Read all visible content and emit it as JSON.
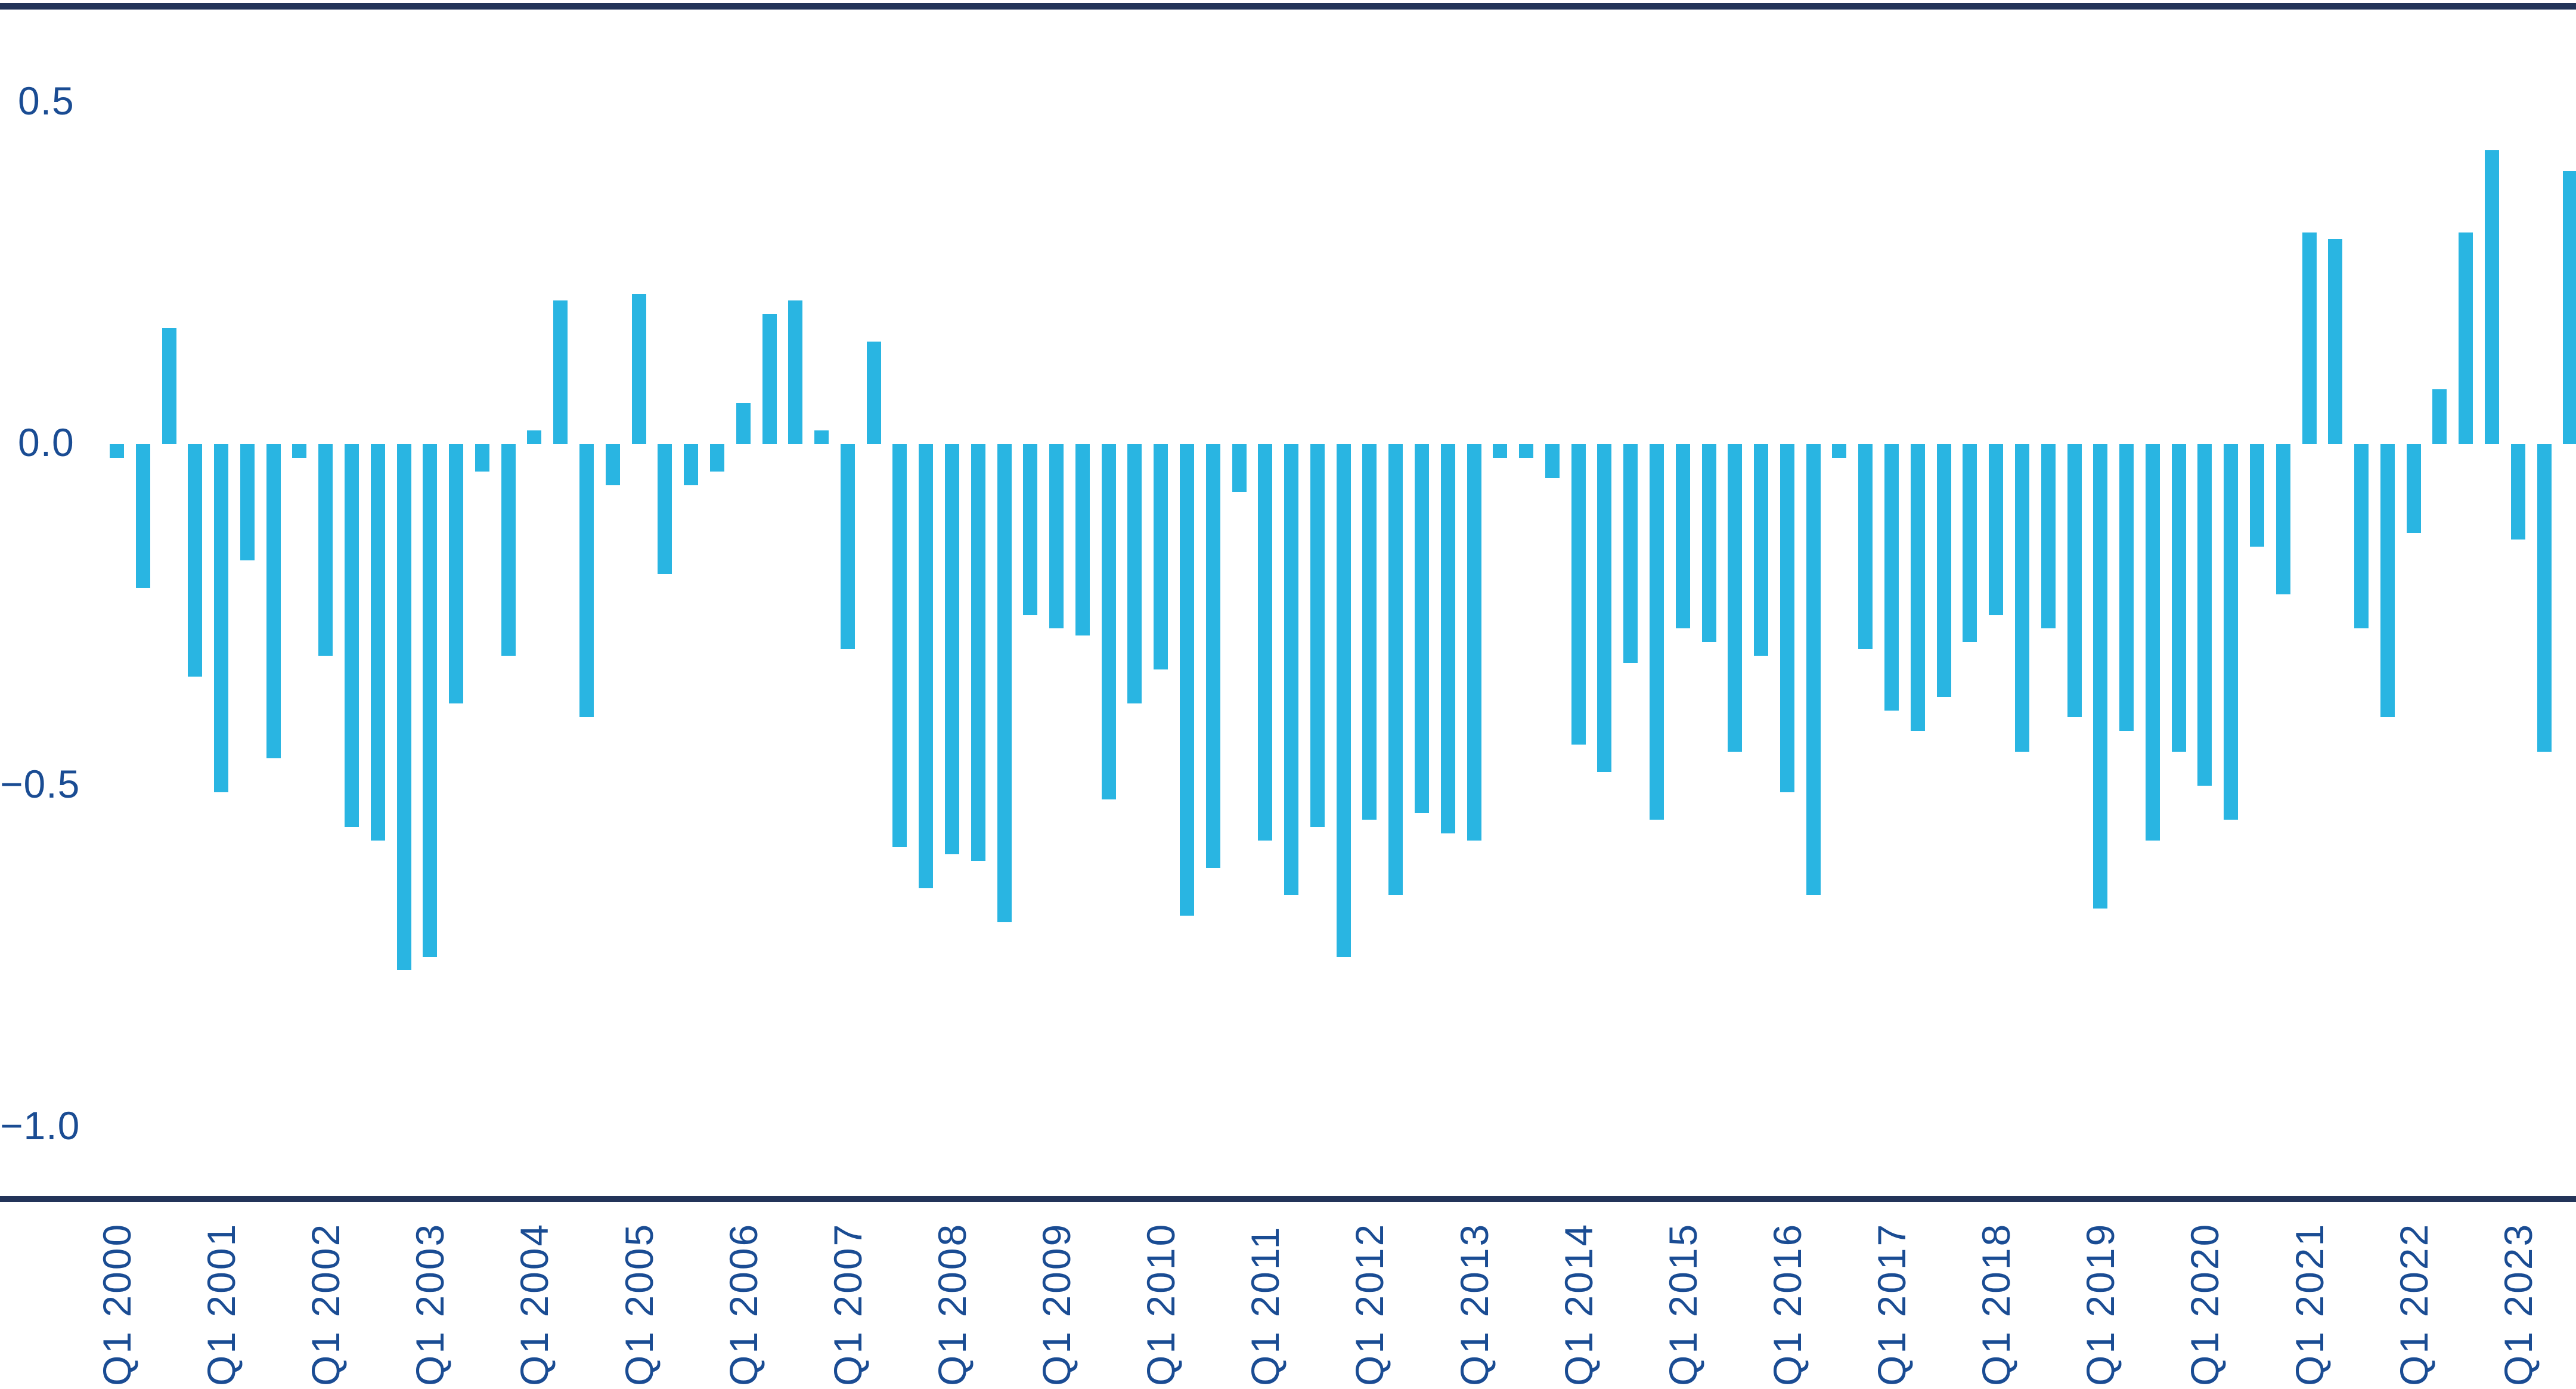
{
  "page": {
    "background": "#FFFFFF"
  },
  "chart_data": {
    "type": "bar",
    "title": "",
    "xlabel": "",
    "ylabel": "",
    "grid": false,
    "legend_position": "none",
    "ylim": [
      -1.1,
      0.64
    ],
    "y_ticks": [
      {
        "label": "0.5",
        "value": 0.5
      },
      {
        "label": "0.0",
        "value": 0.0
      },
      {
        "label": "−0.5",
        "value": -0.5
      },
      {
        "label": "−1.0",
        "value": -1.0
      }
    ],
    "x_tick_labels": [
      "Q1 2000",
      "Q1 2001",
      "Q1 2002",
      "Q1 2003",
      "Q1 2004",
      "Q1 2005",
      "Q1 2006",
      "Q1 2007",
      "Q1 2008",
      "Q1 2009",
      "Q1 2010",
      "Q1 2011",
      "Q1 2012",
      "Q1 2013",
      "Q1 2014",
      "Q1 2015",
      "Q1 2016",
      "Q1 2017",
      "Q1 2018",
      "Q1 2019",
      "Q1 2020",
      "Q1 2021",
      "Q1 2022",
      "Q1 2023"
    ],
    "categories": [
      "Q1 2000",
      "Q2 2000",
      "Q3 2000",
      "Q4 2000",
      "Q1 2001",
      "Q2 2001",
      "Q3 2001",
      "Q4 2001",
      "Q1 2002",
      "Q2 2002",
      "Q3 2002",
      "Q4 2002",
      "Q1 2003",
      "Q2 2003",
      "Q3 2003",
      "Q4 2003",
      "Q1 2004",
      "Q2 2004",
      "Q3 2004",
      "Q4 2004",
      "Q1 2005",
      "Q2 2005",
      "Q3 2005",
      "Q4 2005",
      "Q1 2006",
      "Q2 2006",
      "Q3 2006",
      "Q4 2006",
      "Q1 2007",
      "Q2 2007",
      "Q3 2007",
      "Q4 2007",
      "Q1 2008",
      "Q2 2008",
      "Q3 2008",
      "Q4 2008",
      "Q1 2009",
      "Q2 2009",
      "Q3 2009",
      "Q4 2009",
      "Q1 2010",
      "Q2 2010",
      "Q3 2010",
      "Q4 2010",
      "Q1 2011",
      "Q2 2011",
      "Q3 2011",
      "Q4 2011",
      "Q1 2012",
      "Q2 2012",
      "Q3 2012",
      "Q4 2012",
      "Q1 2013",
      "Q2 2013",
      "Q3 2013",
      "Q4 2013",
      "Q1 2014",
      "Q2 2014",
      "Q3 2014",
      "Q4 2014",
      "Q1 2015",
      "Q2 2015",
      "Q3 2015",
      "Q4 2015",
      "Q1 2016",
      "Q2 2016",
      "Q3 2016",
      "Q4 2016",
      "Q1 2017",
      "Q2 2017",
      "Q3 2017",
      "Q4 2017",
      "Q1 2018",
      "Q2 2018",
      "Q3 2018",
      "Q4 2018",
      "Q1 2019",
      "Q2 2019",
      "Q3 2019",
      "Q4 2019",
      "Q1 2020",
      "Q2 2020",
      "Q3 2020",
      "Q4 2020",
      "Q1 2021",
      "Q2 2021",
      "Q3 2021",
      "Q4 2021",
      "Q1 2022",
      "Q2 2022",
      "Q3 2022",
      "Q4 2022",
      "Q1 2023",
      "Q2 2023",
      "Q3 2023"
    ],
    "values": [
      -0.02,
      -0.21,
      0.17,
      -0.34,
      -0.51,
      -0.17,
      -0.46,
      -0.02,
      -0.31,
      -0.56,
      -0.58,
      -0.77,
      -0.75,
      -0.38,
      -0.04,
      -0.31,
      0.02,
      0.21,
      -0.4,
      -0.06,
      0.22,
      -0.19,
      -0.06,
      -0.04,
      0.06,
      0.19,
      0.21,
      0.02,
      -0.3,
      0.15,
      -0.59,
      -0.65,
      -0.6,
      -0.61,
      -0.7,
      -0.25,
      -0.27,
      -0.28,
      -0.52,
      -0.38,
      -0.33,
      -0.69,
      -0.62,
      -0.07,
      -0.58,
      -0.66,
      -0.56,
      -0.75,
      -0.55,
      -0.66,
      -0.54,
      -0.57,
      -0.58,
      -0.02,
      -0.02,
      -0.05,
      -0.44,
      -0.48,
      -0.32,
      -0.55,
      -0.27,
      -0.29,
      -0.45,
      -0.31,
      -0.51,
      -0.66,
      -0.02,
      -0.3,
      -0.39,
      -0.42,
      -0.37,
      -0.29,
      -0.25,
      -0.45,
      -0.27,
      -0.4,
      -0.68,
      -0.42,
      -0.58,
      -0.45,
      -0.5,
      -0.55,
      -0.15,
      -0.22,
      0.31,
      0.3,
      -0.27,
      -0.4,
      -0.13,
      0.08,
      0.31,
      0.43,
      -0.14,
      -0.45,
      0.4
    ],
    "colors": {
      "bar": "#29B5E2",
      "tick_label": "#1A4C93",
      "axis_line": "#233459",
      "background": "#FFFFFF"
    }
  }
}
